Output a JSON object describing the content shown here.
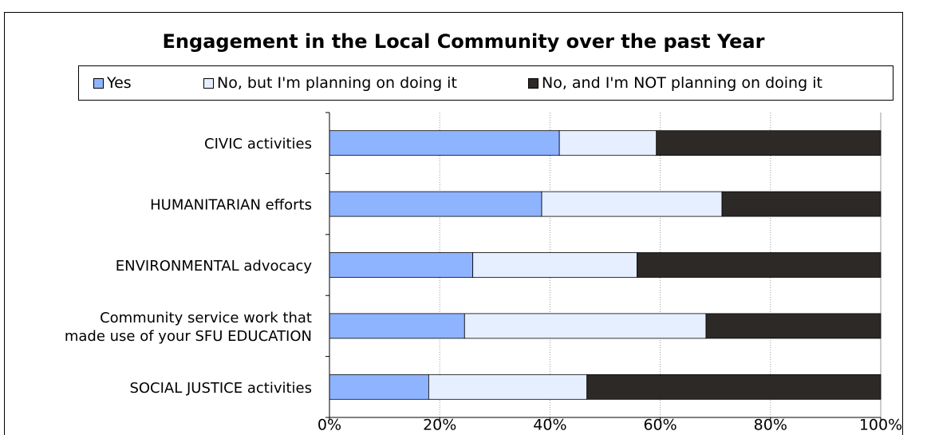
{
  "chart_data": {
    "type": "bar",
    "orientation": "horizontal",
    "stacked": true,
    "percent_stacked": true,
    "title": "Engagement in the Local Community over the past Year",
    "legend_position": "top",
    "categories": [
      [
        "CIVIC activities"
      ],
      [
        "HUMANITARIAN efforts"
      ],
      [
        "ENVIRONMENTAL advocacy"
      ],
      [
        "Community service work that",
        "made use of your SFU EDUCATION"
      ],
      [
        "SOCIAL JUSTICE activities"
      ]
    ],
    "series": [
      {
        "name": "Yes",
        "color": "#8FB4FF",
        "values": [
          41.7,
          38.5,
          26.0,
          24.5,
          18.0
        ]
      },
      {
        "name": "No, but I'm planning on doing it",
        "color": "#E6EFFF",
        "values": [
          17.6,
          32.7,
          29.8,
          43.8,
          28.7
        ]
      },
      {
        "name": "No, and I'm NOT planning on doing it",
        "color": "#2D2926",
        "values": [
          40.7,
          28.8,
          44.2,
          31.7,
          53.3
        ]
      }
    ],
    "xlim": [
      0,
      100
    ],
    "x_ticks": [
      "0%",
      "20%",
      "40%",
      "60%",
      "80%",
      "100%"
    ],
    "grid": true
  }
}
